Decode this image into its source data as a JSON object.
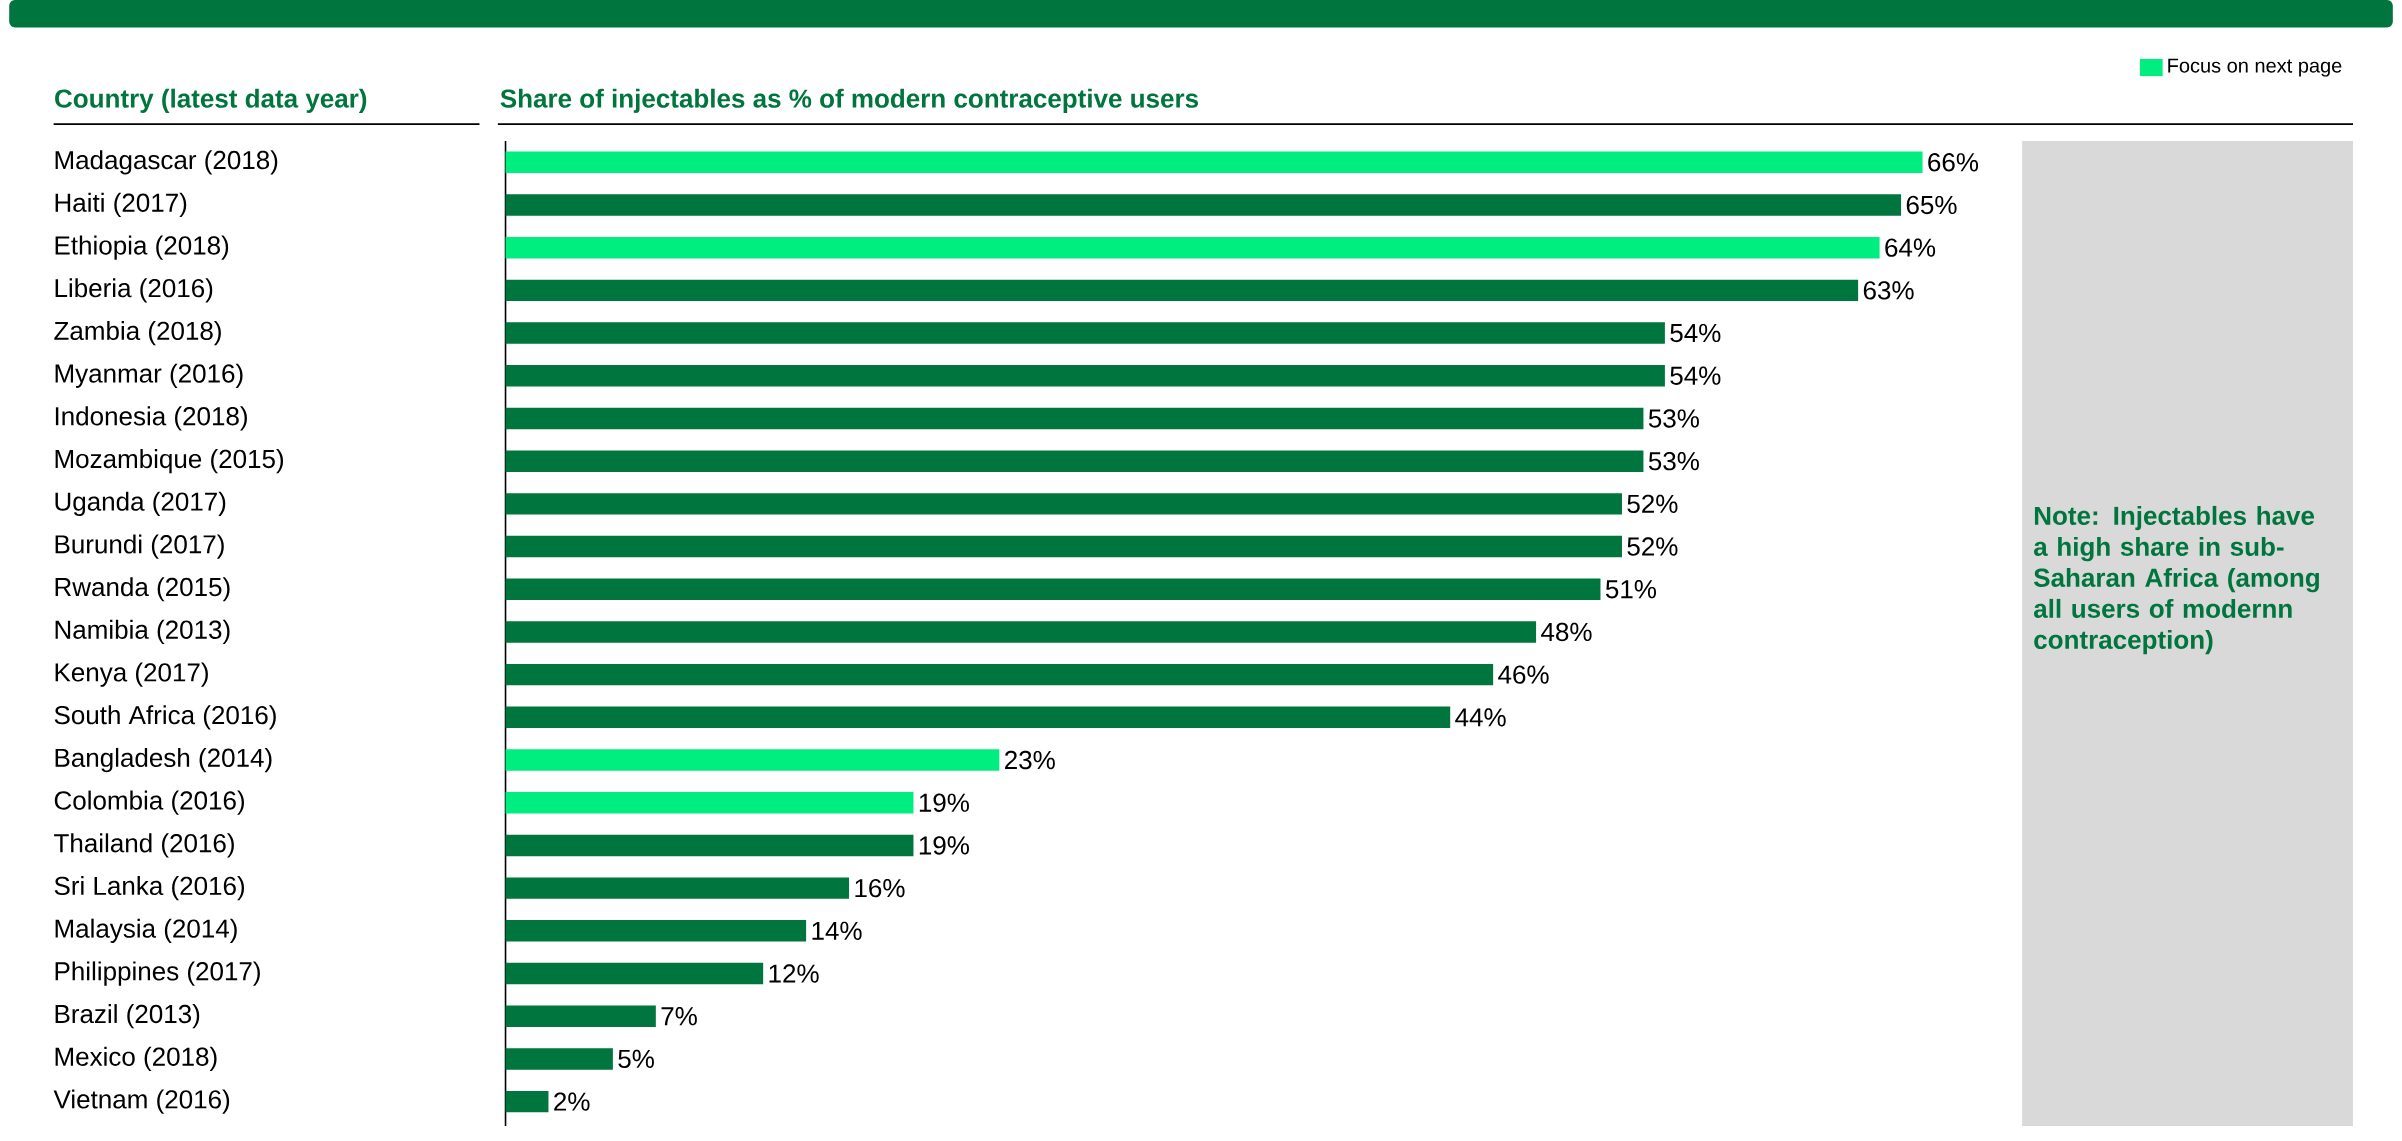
{
  "chart_data": {
    "type": "bar",
    "orientation": "horizontal",
    "title": "Share of injectables as % of modern contraceptive users",
    "ylabel": "Country (latest data year)",
    "categories": [
      "Madagascar (2018)",
      "Haiti (2017)",
      "Ethiopia (2018)",
      "Liberia (2016)",
      "Zambia (2018)",
      "Myanmar (2016)",
      "Indonesia (2018)",
      "Mozambique (2015)",
      "Uganda (2017)",
      "Burundi (2017)",
      "Rwanda (2015)",
      "Namibia (2013)",
      "Kenya (2017)",
      "South Africa (2016)",
      "Bangladesh (2014)",
      "Colombia (2016)",
      "Thailand (2016)",
      "Sri Lanka (2016)",
      "Malaysia (2014)",
      "Philippines (2017)",
      "Brazil (2013)",
      "Mexico (2018)",
      "Vietnam (2016)"
    ],
    "series": [
      {
        "name": "Focus on next page",
        "color": "#00ee80",
        "values": [
          66,
          null,
          64,
          null,
          null,
          null,
          null,
          null,
          null,
          null,
          null,
          null,
          null,
          null,
          23,
          19,
          null,
          null,
          null,
          null,
          null,
          null,
          null
        ],
        "value_labels": [
          "66%",
          null,
          "64%",
          null,
          null,
          null,
          null,
          null,
          null,
          null,
          null,
          null,
          null,
          null,
          "23%",
          "19%",
          null,
          null,
          null,
          null,
          null,
          null,
          null
        ]
      },
      {
        "color": "#00753e",
        "values": [
          null,
          65,
          null,
          63,
          54,
          54,
          53,
          53,
          52,
          52,
          51,
          48,
          46,
          44,
          null,
          null,
          19,
          16,
          14,
          12,
          7,
          5,
          2
        ],
        "value_labels": [
          null,
          "65%",
          null,
          "63%",
          "54%",
          "54%",
          "53%",
          "53%",
          "52%",
          "52%",
          "51%",
          "48%",
          "46%",
          "44%",
          null,
          null,
          "19%",
          "16%",
          "14%",
          "12%",
          "7%",
          "5%",
          "2%"
        ]
      }
    ],
    "legend": "top right",
    "annotations": [
      "Note: Injectables have a high share in sub-Saharan Africa (among all users of modernn contraception)"
    ]
  }
}
